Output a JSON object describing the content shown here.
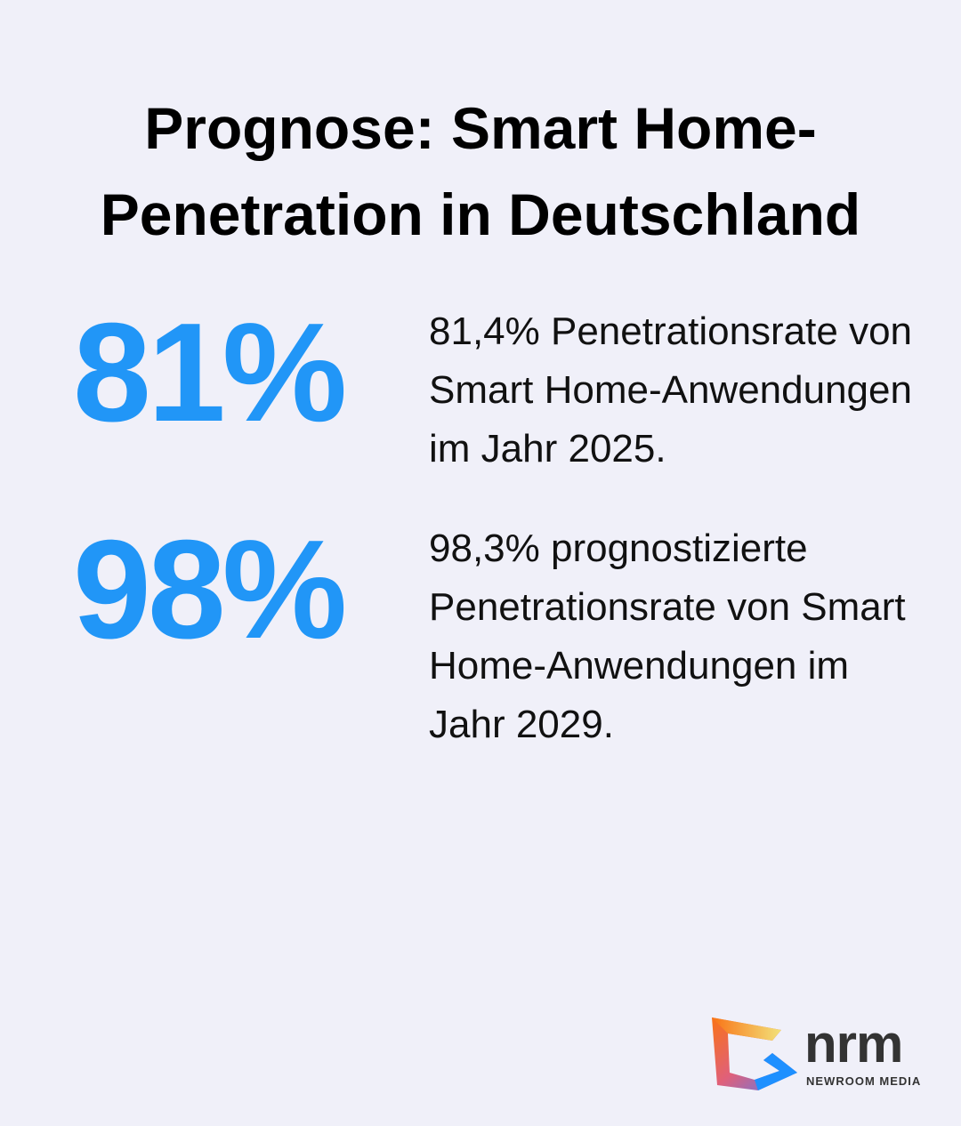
{
  "title": "Prognose: Smart Home-Penetration in Deutschland",
  "accent_color": "#2196f7",
  "stats": [
    {
      "value": "81%",
      "description": "81,4% Penetrationsrate von Smart Home-Anwendungen im Jahr 2025."
    },
    {
      "value": "98%",
      "description": "98,3% prognostizierte Penetrationsrate von Smart Home-Anwendungen im Jahr 2029."
    }
  ],
  "logo": {
    "name": "nrm",
    "subtitle": "NEWROOM MEDIA"
  }
}
